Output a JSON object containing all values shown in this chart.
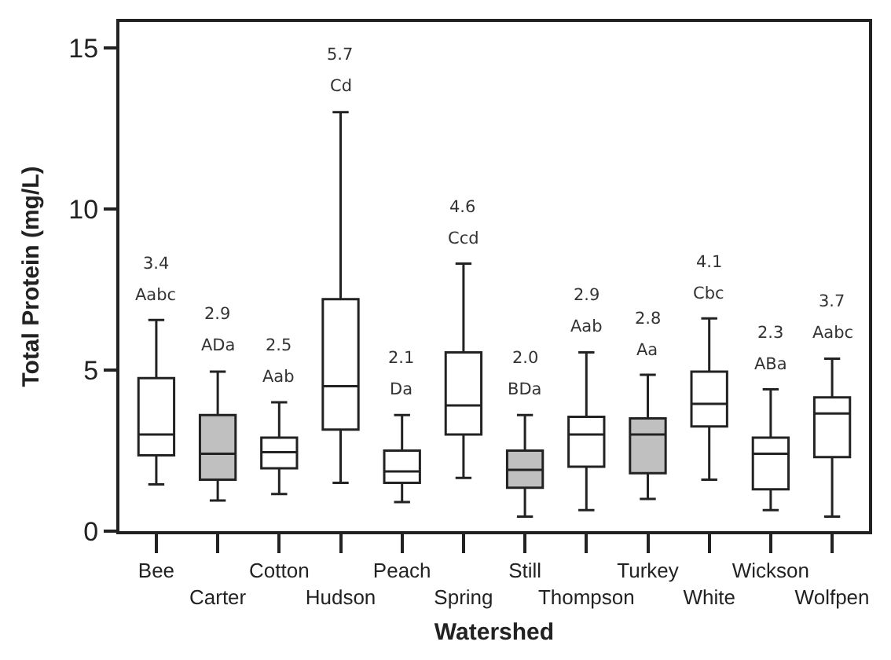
{
  "chart_data": {
    "type": "box",
    "xlabel": "Watershed",
    "ylabel": "Total Protein (mg/L)",
    "categories": [
      "Bee",
      "Carter",
      "Cotton",
      "Hudson",
      "Peach",
      "Spring",
      "Still",
      "Thompson",
      "Turkey",
      "White",
      "Wickson",
      "Wolfpen"
    ],
    "colors": [
      "#ffffff",
      "#c0c0c0",
      "#ffffff",
      "#ffffff",
      "#ffffff",
      "#ffffff",
      "#c0c0c0",
      "#ffffff",
      "#c0c0c0",
      "#ffffff",
      "#ffffff",
      "#ffffff"
    ],
    "boxes": [
      {
        "low": 1.45,
        "q1": 2.35,
        "median": 3.0,
        "q3": 4.75,
        "high": 6.55
      },
      {
        "low": 0.95,
        "q1": 1.6,
        "median": 2.4,
        "q3": 3.6,
        "high": 4.95
      },
      {
        "low": 1.15,
        "q1": 1.95,
        "median": 2.45,
        "q3": 2.9,
        "high": 4.0
      },
      {
        "low": 1.5,
        "q1": 3.15,
        "median": 4.5,
        "q3": 7.2,
        "high": 13.0
      },
      {
        "low": 0.9,
        "q1": 1.5,
        "median": 1.85,
        "q3": 2.5,
        "high": 3.6
      },
      {
        "low": 1.65,
        "q1": 3.0,
        "median": 3.9,
        "q3": 5.55,
        "high": 8.3
      },
      {
        "low": 0.45,
        "q1": 1.35,
        "median": 1.9,
        "q3": 2.5,
        "high": 3.6
      },
      {
        "low": 0.65,
        "q1": 2.0,
        "median": 3.0,
        "q3": 3.55,
        "high": 5.55
      },
      {
        "low": 1.0,
        "q1": 1.8,
        "median": 3.0,
        "q3": 3.5,
        "high": 4.85
      },
      {
        "low": 1.6,
        "q1": 3.25,
        "median": 3.95,
        "q3": 4.95,
        "high": 6.6
      },
      {
        "low": 0.65,
        "q1": 1.3,
        "median": 2.4,
        "q3": 2.9,
        "high": 4.4
      },
      {
        "low": 0.45,
        "q1": 2.3,
        "median": 3.65,
        "q3": 4.15,
        "high": 5.35
      }
    ],
    "ylim": [
      0,
      15.8
    ],
    "yticks": [
      0,
      5,
      10,
      15
    ],
    "legend": false,
    "annotations": [
      "3.4",
      "Aabc",
      "2.9",
      "ADa",
      "2.5",
      "Aab",
      "5.7",
      "Cd",
      "2.1",
      "Da",
      "4.6",
      "Ccd",
      "2.0",
      "BDa",
      "2.9",
      "Aab",
      "2.8",
      "Aa",
      "4.1",
      "Cbc",
      "2.3",
      "ABa",
      "3.7",
      "Aabc"
    ]
  }
}
